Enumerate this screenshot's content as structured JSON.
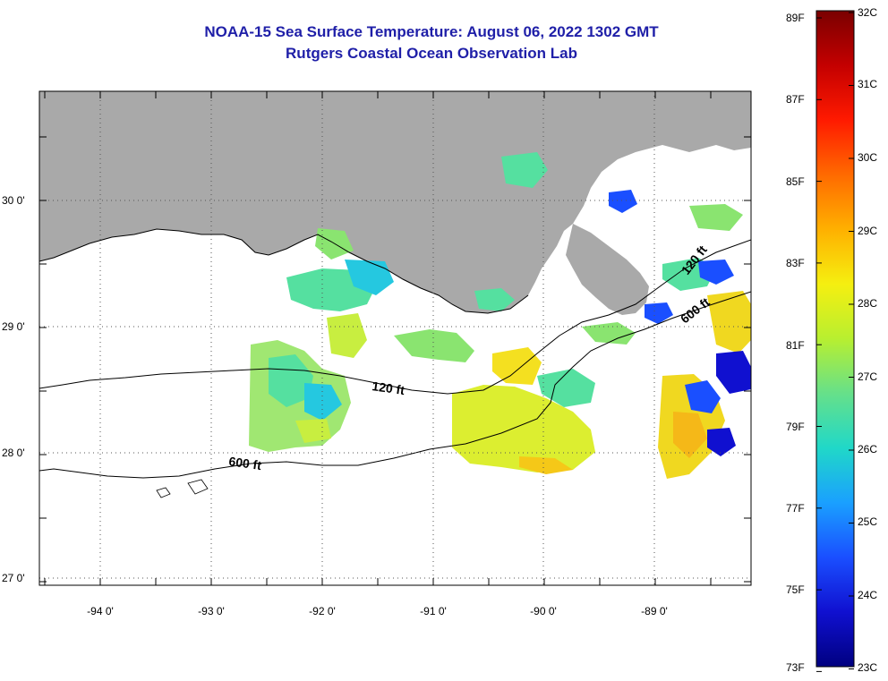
{
  "header": {
    "title": "NOAA-15 Sea Surface Temperature:  August 06, 2022 1302 GMT",
    "subtitle": "Rutgers Coastal Ocean Observation Lab"
  },
  "map": {
    "lat_labels": [
      "30 0'",
      "29 0'",
      "28 0'",
      "27 0'"
    ],
    "lon_labels": [
      "-94 0'",
      "-93 0'",
      "-92 0'",
      "-91 0'",
      "-90 0'",
      "-89 0'"
    ],
    "contour_labels": {
      "inner_120_west": "120 ft",
      "inner_120_east": "120 ft",
      "outer_600_west": "600 ft",
      "outer_600_east": "600 ft"
    },
    "land_color": "#a9a9a9",
    "no_data_color": "#ffffff"
  },
  "colorbar": {
    "fahrenheit_labels": [
      "89F",
      "87F",
      "85F",
      "83F",
      "81F",
      "79F",
      "77F",
      "75F",
      "73F"
    ],
    "celsius_labels": [
      "32C",
      "31C",
      "30C",
      "29C",
      "28C",
      "27C",
      "26C",
      "25C",
      "24C",
      "23C"
    ],
    "gradient_colors": [
      "#7a0000",
      "#c40000",
      "#ff1a00",
      "#ff6a00",
      "#ffb000",
      "#f5ef10",
      "#b8ef30",
      "#66e08a",
      "#20d8c8",
      "#1aa0ff",
      "#1a4fff",
      "#1010d0",
      "#000080"
    ]
  }
}
